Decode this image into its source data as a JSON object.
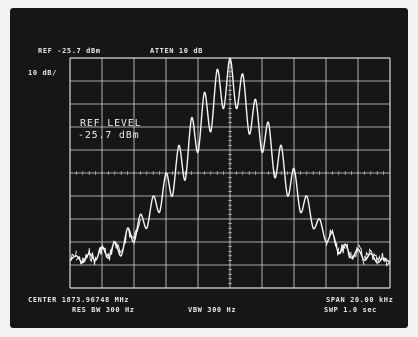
{
  "header": {
    "ref": "REF -25.7 dBm",
    "atten": "ATTEN 10 dB",
    "scale": "10 dB/"
  },
  "annotation": {
    "label": "REF LEVEL",
    "value": "-25.7 dBm"
  },
  "footer": {
    "center": "CENTER 1873.96748 MHz",
    "res_bw": "RES BW 300 Hz",
    "vbw": "VBW 300 Hz",
    "span": "SPAN 20.00 kHz",
    "sweep": "SWP 1.0 sec"
  },
  "colors": {
    "screen": "#161616",
    "grid": "#d8d8d8",
    "trace": "#f5f5f5",
    "text": "#e9e9e9"
  },
  "chart_data": {
    "type": "line",
    "x_range": [
      -10,
      10
    ],
    "y_range": [
      -125.7,
      -25.7
    ],
    "grid": true,
    "grid_divisions": {
      "x": 10,
      "y": 10
    },
    "series": [
      {
        "x": [
          -10.0,
          -9.6,
          -9.2,
          -8.8,
          -8.4,
          -8.0,
          -7.6,
          -7.2,
          -6.8,
          -6.4,
          -6.0,
          -5.6,
          -5.2,
          -4.8,
          -4.4,
          -4.0,
          -3.6,
          -3.2,
          -2.8,
          -2.4,
          -2.0,
          -1.6,
          -1.2,
          -0.8,
          -0.4,
          0.0,
          0.4,
          0.8,
          1.2,
          1.6,
          2.0,
          2.4,
          2.8,
          3.2,
          3.6,
          4.0,
          4.4,
          4.8,
          5.2,
          5.6,
          6.0,
          6.4,
          6.8,
          7.2,
          7.6,
          8.0,
          8.4,
          8.8,
          9.2,
          9.6,
          10.0
        ],
        "y": [
          -113.7,
          -111.7,
          -114.7,
          -110.7,
          -113.7,
          -107.7,
          -112.7,
          -105.7,
          -111.7,
          -99.7,
          -105.7,
          -93.7,
          -99.7,
          -85.7,
          -92.7,
          -75.7,
          -85.7,
          -63.7,
          -78.7,
          -51.7,
          -66.7,
          -40.7,
          -57.7,
          -30.7,
          -47.7,
          -25.7,
          -47.7,
          -32.7,
          -58.7,
          -43.7,
          -66.7,
          -53.7,
          -77.7,
          -63.7,
          -85.7,
          -73.7,
          -92.7,
          -85.7,
          -99.7,
          -95.7,
          -105.7,
          -101.7,
          -110.7,
          -106.7,
          -112.7,
          -108.7,
          -113.7,
          -110.7,
          -114.7,
          -112.7,
          -114.7
        ]
      }
    ]
  }
}
